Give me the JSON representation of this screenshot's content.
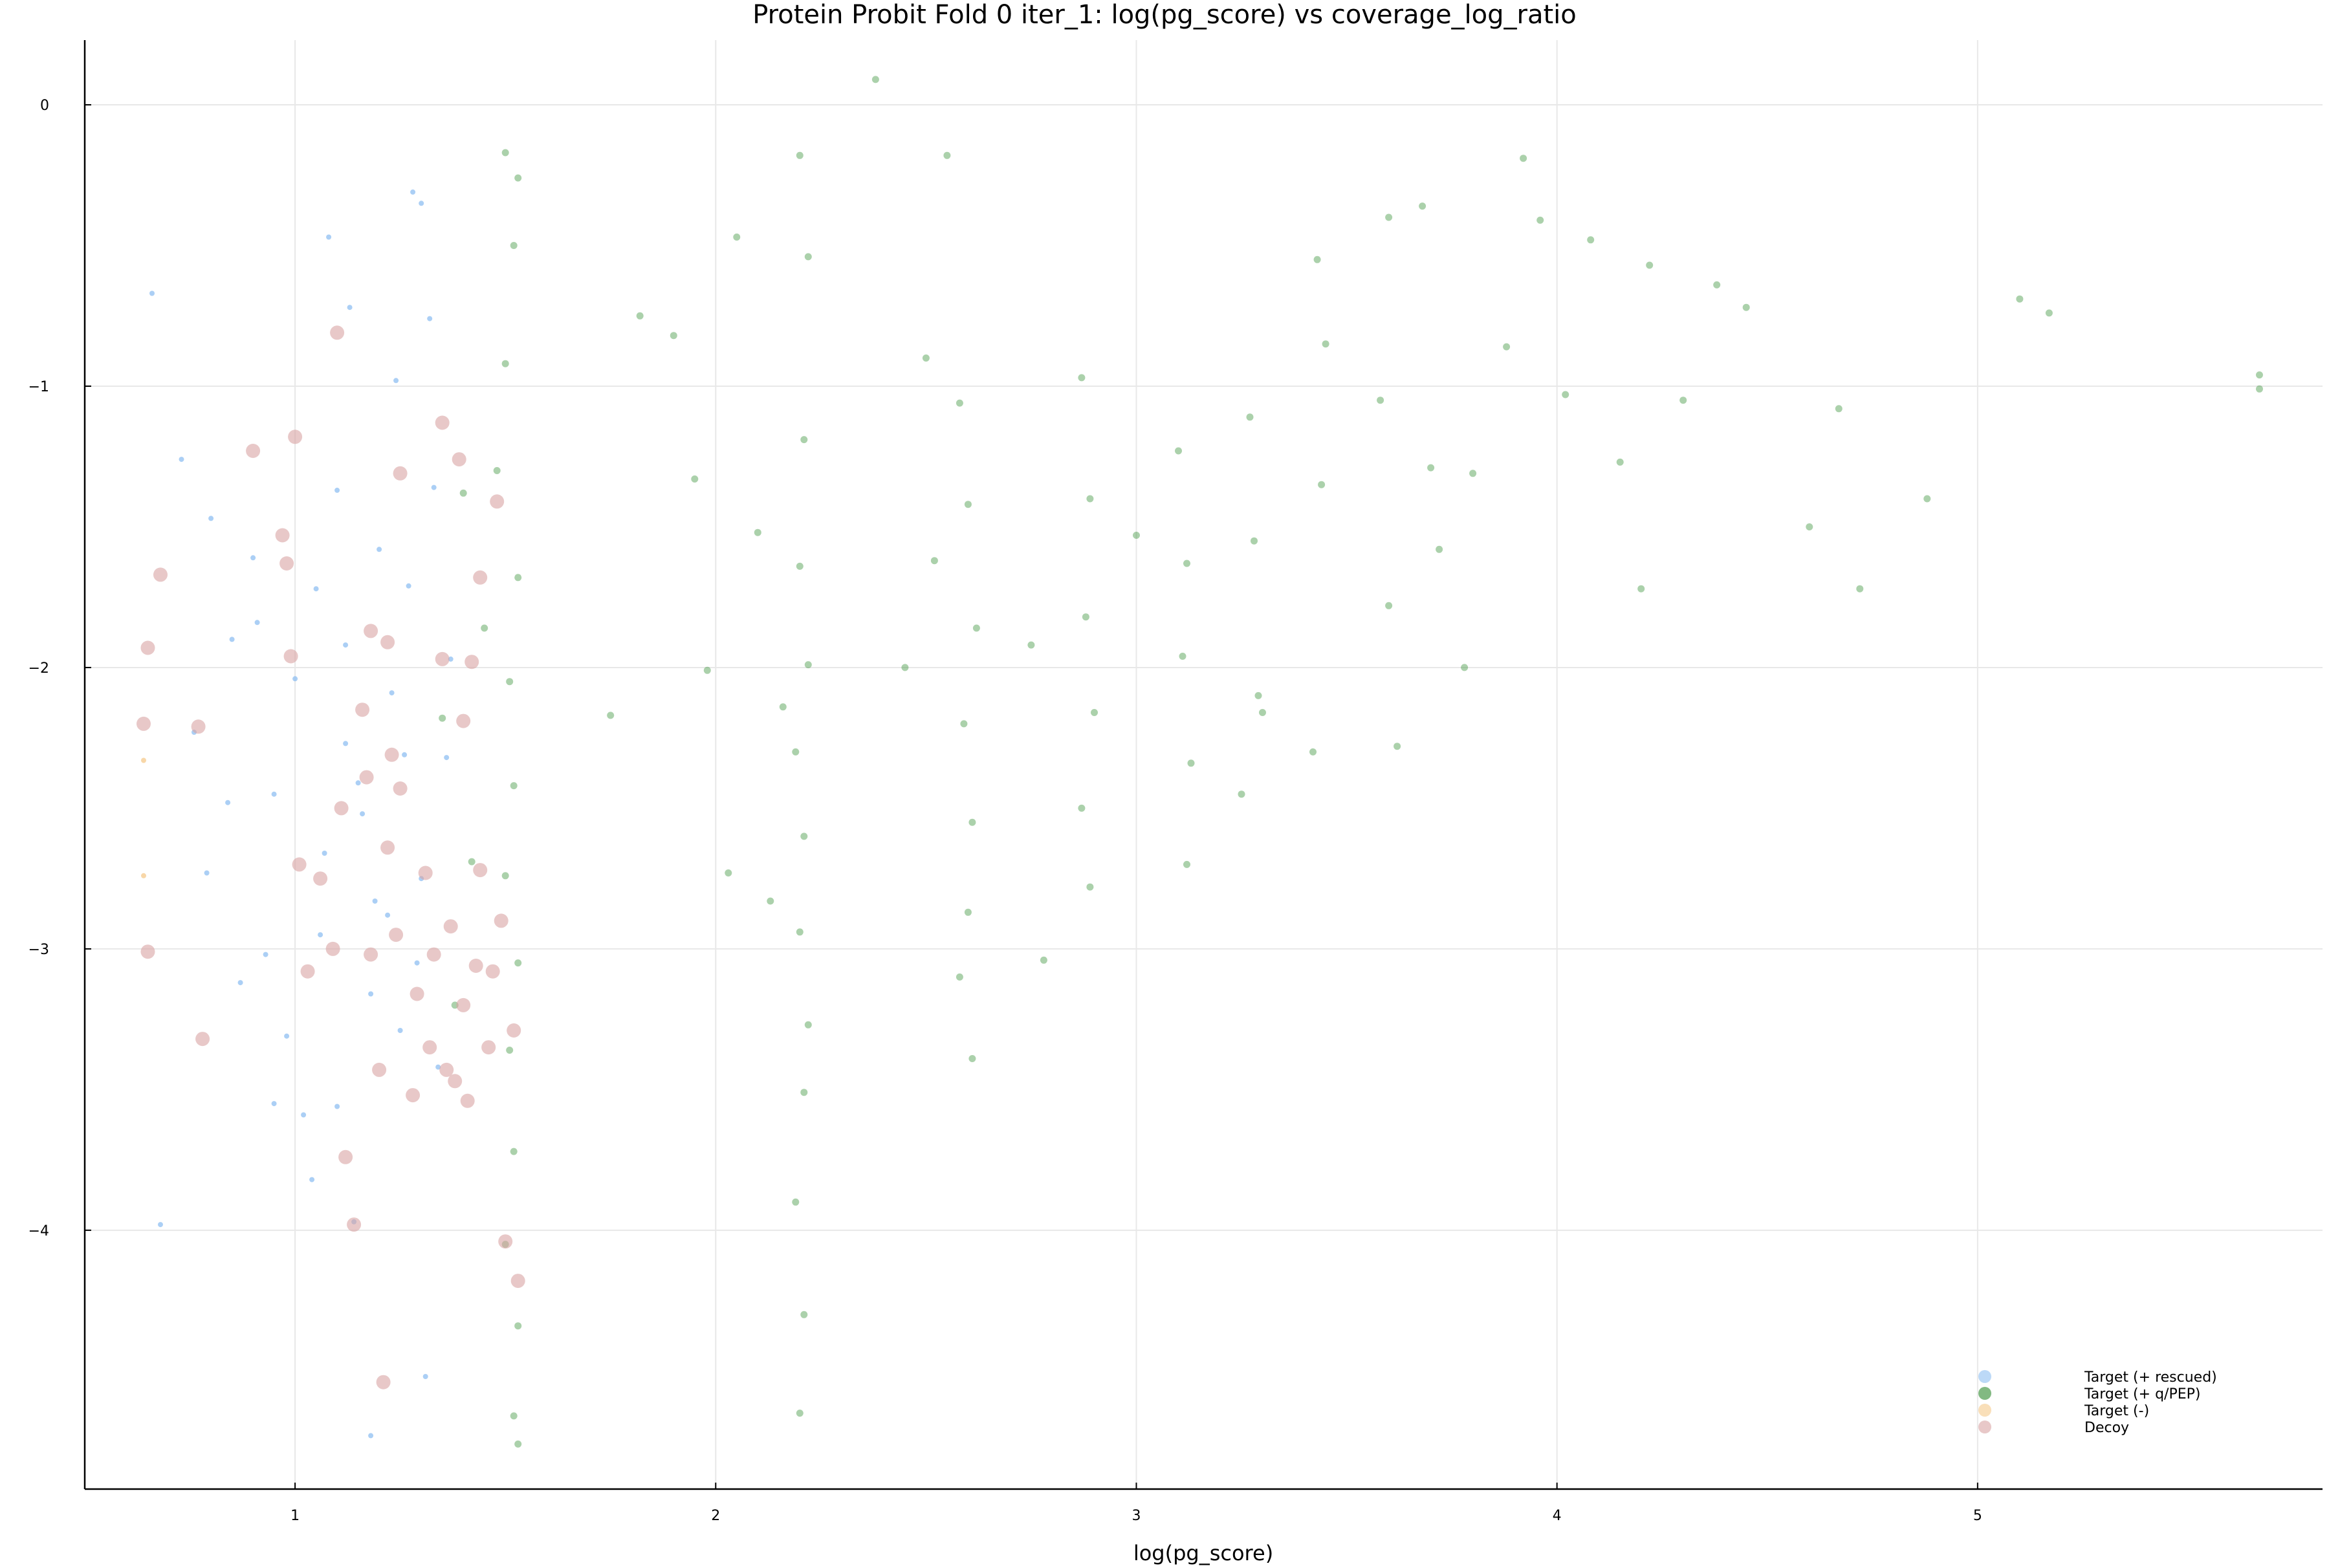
{
  "chart_data": {
    "type": "scatter",
    "title": "Protein Probit Fold 0 iter_1: log(pg_score) vs coverage_log_ratio",
    "xlabel": "log(pg_score)",
    "ylabel": "",
    "xlim": [
      0.5,
      5.82
    ],
    "ylim": [
      -4.92,
      0.23
    ],
    "x_ticks": [
      1,
      2,
      3,
      4,
      5
    ],
    "y_ticks": [
      0,
      -1,
      -2,
      -3,
      -4
    ],
    "x_tick_labels": [
      "1",
      "2",
      "3",
      "4",
      "5"
    ],
    "y_tick_labels": [
      "0",
      "−1",
      "−2",
      "−3",
      "−4"
    ],
    "grid": true,
    "legend_position": "bottom-right",
    "series": [
      {
        "name": "Target (+ rescued)",
        "color": "#8fbff2",
        "marker": "small-dot",
        "points": [
          [
            0.66,
            -0.67
          ],
          [
            0.73,
            -1.26
          ],
          [
            0.8,
            -1.47
          ],
          [
            0.85,
            -1.9
          ],
          [
            0.9,
            -1.61
          ],
          [
            0.95,
            -2.45
          ],
          [
            1.0,
            -2.04
          ],
          [
            1.05,
            -1.72
          ],
          [
            1.08,
            -0.47
          ],
          [
            1.1,
            -1.37
          ],
          [
            1.13,
            -0.72
          ],
          [
            1.16,
            -2.52
          ],
          [
            1.2,
            -1.58
          ],
          [
            1.24,
            -0.98
          ],
          [
            1.28,
            -0.31
          ],
          [
            1.3,
            -0.35
          ],
          [
            1.32,
            -0.76
          ],
          [
            1.06,
            -2.95
          ],
          [
            1.12,
            -2.27
          ],
          [
            1.18,
            -3.16
          ],
          [
            1.22,
            -2.88
          ],
          [
            1.26,
            -2.31
          ],
          [
            1.3,
            -2.75
          ],
          [
            1.34,
            -3.42
          ],
          [
            1.02,
            -3.59
          ],
          [
            0.98,
            -3.31
          ],
          [
            1.14,
            -3.97
          ],
          [
            1.1,
            -3.56
          ],
          [
            1.18,
            -4.73
          ],
          [
            1.31,
            -4.52
          ],
          [
            0.68,
            -3.98
          ],
          [
            0.79,
            -2.73
          ],
          [
            0.87,
            -3.12
          ],
          [
            0.93,
            -3.02
          ],
          [
            1.07,
            -2.66
          ],
          [
            1.15,
            -2.41
          ],
          [
            1.23,
            -2.09
          ],
          [
            1.27,
            -1.71
          ],
          [
            1.33,
            -1.36
          ],
          [
            0.95,
            -3.55
          ],
          [
            1.04,
            -3.82
          ],
          [
            1.12,
            -1.92
          ],
          [
            1.19,
            -2.83
          ],
          [
            1.25,
            -3.29
          ],
          [
            1.29,
            -3.05
          ],
          [
            0.76,
            -2.23
          ],
          [
            0.84,
            -2.48
          ],
          [
            0.91,
            -1.84
          ],
          [
            1.36,
            -2.32
          ],
          [
            1.37,
            -1.97
          ]
        ]
      },
      {
        "name": "Target (+ q/PEP)",
        "color": "#2e8b2e",
        "marker": "dot",
        "points": [
          [
            1.5,
            -0.17
          ],
          [
            1.53,
            -0.26
          ],
          [
            1.52,
            -0.5
          ],
          [
            1.5,
            -0.92
          ],
          [
            1.48,
            -1.3
          ],
          [
            1.53,
            -1.68
          ],
          [
            1.51,
            -2.05
          ],
          [
            1.52,
            -2.42
          ],
          [
            1.5,
            -2.74
          ],
          [
            1.53,
            -3.05
          ],
          [
            1.51,
            -3.36
          ],
          [
            1.52,
            -3.72
          ],
          [
            1.5,
            -4.05
          ],
          [
            1.53,
            -4.34
          ],
          [
            1.52,
            -4.66
          ],
          [
            1.53,
            -4.76
          ],
          [
            1.45,
            -1.86
          ],
          [
            1.42,
            -2.69
          ],
          [
            1.38,
            -3.2
          ],
          [
            1.4,
            -1.38
          ],
          [
            1.35,
            -2.18
          ],
          [
            2.2,
            -0.18
          ],
          [
            2.22,
            -0.54
          ],
          [
            2.21,
            -1.19
          ],
          [
            2.2,
            -1.64
          ],
          [
            2.22,
            -1.99
          ],
          [
            2.19,
            -2.3
          ],
          [
            2.21,
            -2.6
          ],
          [
            2.2,
            -2.94
          ],
          [
            2.22,
            -3.27
          ],
          [
            2.21,
            -3.51
          ],
          [
            2.19,
            -3.9
          ],
          [
            2.21,
            -4.3
          ],
          [
            2.2,
            -4.65
          ],
          [
            2.1,
            -1.52
          ],
          [
            2.13,
            -2.83
          ],
          [
            2.16,
            -2.14
          ],
          [
            2.05,
            -0.47
          ],
          [
            2.03,
            -2.73
          ],
          [
            2.38,
            0.09
          ],
          [
            2.55,
            -0.18
          ],
          [
            2.5,
            -0.9
          ],
          [
            2.58,
            -1.06
          ],
          [
            2.6,
            -1.42
          ],
          [
            2.62,
            -1.86
          ],
          [
            2.59,
            -2.2
          ],
          [
            2.61,
            -2.55
          ],
          [
            2.6,
            -2.87
          ],
          [
            2.58,
            -3.1
          ],
          [
            2.61,
            -3.39
          ],
          [
            2.45,
            -2.0
          ],
          [
            2.52,
            -1.62
          ],
          [
            2.87,
            -0.97
          ],
          [
            2.89,
            -1.4
          ],
          [
            2.88,
            -1.82
          ],
          [
            2.9,
            -2.16
          ],
          [
            2.87,
            -2.5
          ],
          [
            2.89,
            -2.78
          ],
          [
            2.75,
            -1.92
          ],
          [
            2.78,
            -3.04
          ],
          [
            3.1,
            -1.23
          ],
          [
            3.12,
            -1.63
          ],
          [
            3.11,
            -1.96
          ],
          [
            3.13,
            -2.34
          ],
          [
            3.12,
            -2.7
          ],
          [
            3.0,
            -1.53
          ],
          [
            3.27,
            -1.11
          ],
          [
            3.28,
            -1.55
          ],
          [
            3.29,
            -2.1
          ],
          [
            3.3,
            -2.16
          ],
          [
            3.25,
            -2.45
          ],
          [
            3.43,
            -0.55
          ],
          [
            3.45,
            -0.85
          ],
          [
            3.44,
            -1.35
          ],
          [
            3.42,
            -2.3
          ],
          [
            3.6,
            -0.4
          ],
          [
            3.58,
            -1.05
          ],
          [
            3.6,
            -1.78
          ],
          [
            3.62,
            -2.28
          ],
          [
            3.68,
            -0.36
          ],
          [
            3.7,
            -1.29
          ],
          [
            3.72,
            -1.58
          ],
          [
            3.78,
            -2.0
          ],
          [
            3.8,
            -1.31
          ],
          [
            3.88,
            -0.86
          ],
          [
            3.92,
            -0.19
          ],
          [
            3.96,
            -0.41
          ],
          [
            4.02,
            -1.03
          ],
          [
            4.08,
            -0.48
          ],
          [
            4.15,
            -1.27
          ],
          [
            4.22,
            -0.57
          ],
          [
            4.2,
            -1.72
          ],
          [
            4.3,
            -1.05
          ],
          [
            4.38,
            -0.64
          ],
          [
            4.45,
            -0.72
          ],
          [
            4.6,
            -1.5
          ],
          [
            4.67,
            -1.08
          ],
          [
            4.72,
            -1.72
          ],
          [
            4.88,
            -1.4
          ],
          [
            5.1,
            -0.69
          ],
          [
            5.17,
            -0.74
          ],
          [
            5.67,
            -0.96
          ],
          [
            5.67,
            -1.01
          ],
          [
            1.75,
            -2.17
          ],
          [
            1.82,
            -0.75
          ],
          [
            1.9,
            -0.82
          ],
          [
            1.95,
            -1.33
          ],
          [
            1.98,
            -2.01
          ]
        ]
      },
      {
        "name": "Target (-)",
        "color": "#f5c98b",
        "marker": "small-dot",
        "points": [
          [
            0.64,
            -2.33
          ],
          [
            0.64,
            -2.74
          ]
        ]
      },
      {
        "name": "Decoy",
        "color": "#d9a4a4",
        "marker": "large-dot",
        "points": [
          [
            0.64,
            -2.2
          ],
          [
            0.65,
            -1.93
          ],
          [
            0.68,
            -1.67
          ],
          [
            0.65,
            -3.01
          ],
          [
            0.77,
            -2.21
          ],
          [
            0.78,
            -3.32
          ],
          [
            0.9,
            -1.23
          ],
          [
            0.97,
            -1.53
          ],
          [
            0.98,
            -1.63
          ],
          [
            0.99,
            -1.96
          ],
          [
            1.0,
            -1.18
          ],
          [
            1.01,
            -2.7
          ],
          [
            1.03,
            -3.08
          ],
          [
            1.06,
            -2.75
          ],
          [
            1.09,
            -3.0
          ],
          [
            1.1,
            -0.81
          ],
          [
            1.11,
            -2.5
          ],
          [
            1.12,
            -3.74
          ],
          [
            1.14,
            -3.98
          ],
          [
            1.16,
            -2.15
          ],
          [
            1.17,
            -2.39
          ],
          [
            1.18,
            -1.87
          ],
          [
            1.18,
            -3.02
          ],
          [
            1.2,
            -3.43
          ],
          [
            1.21,
            -4.54
          ],
          [
            1.22,
            -1.91
          ],
          [
            1.22,
            -2.64
          ],
          [
            1.23,
            -2.31
          ],
          [
            1.24,
            -2.95
          ],
          [
            1.25,
            -2.43
          ],
          [
            1.25,
            -1.31
          ],
          [
            1.28,
            -3.52
          ],
          [
            1.29,
            -3.16
          ],
          [
            1.31,
            -2.73
          ],
          [
            1.32,
            -3.35
          ],
          [
            1.33,
            -3.02
          ],
          [
            1.35,
            -1.13
          ],
          [
            1.35,
            -1.97
          ],
          [
            1.36,
            -3.43
          ],
          [
            1.37,
            -2.92
          ],
          [
            1.38,
            -3.47
          ],
          [
            1.39,
            -1.26
          ],
          [
            1.4,
            -2.19
          ],
          [
            1.4,
            -3.2
          ],
          [
            1.41,
            -3.54
          ],
          [
            1.42,
            -1.98
          ],
          [
            1.43,
            -3.06
          ],
          [
            1.44,
            -2.72
          ],
          [
            1.46,
            -3.35
          ],
          [
            1.48,
            -1.41
          ],
          [
            1.49,
            -2.9
          ],
          [
            1.5,
            -4.04
          ],
          [
            1.52,
            -3.29
          ],
          [
            1.53,
            -4.18
          ],
          [
            1.47,
            -3.08
          ],
          [
            1.44,
            -1.68
          ]
        ]
      }
    ]
  }
}
